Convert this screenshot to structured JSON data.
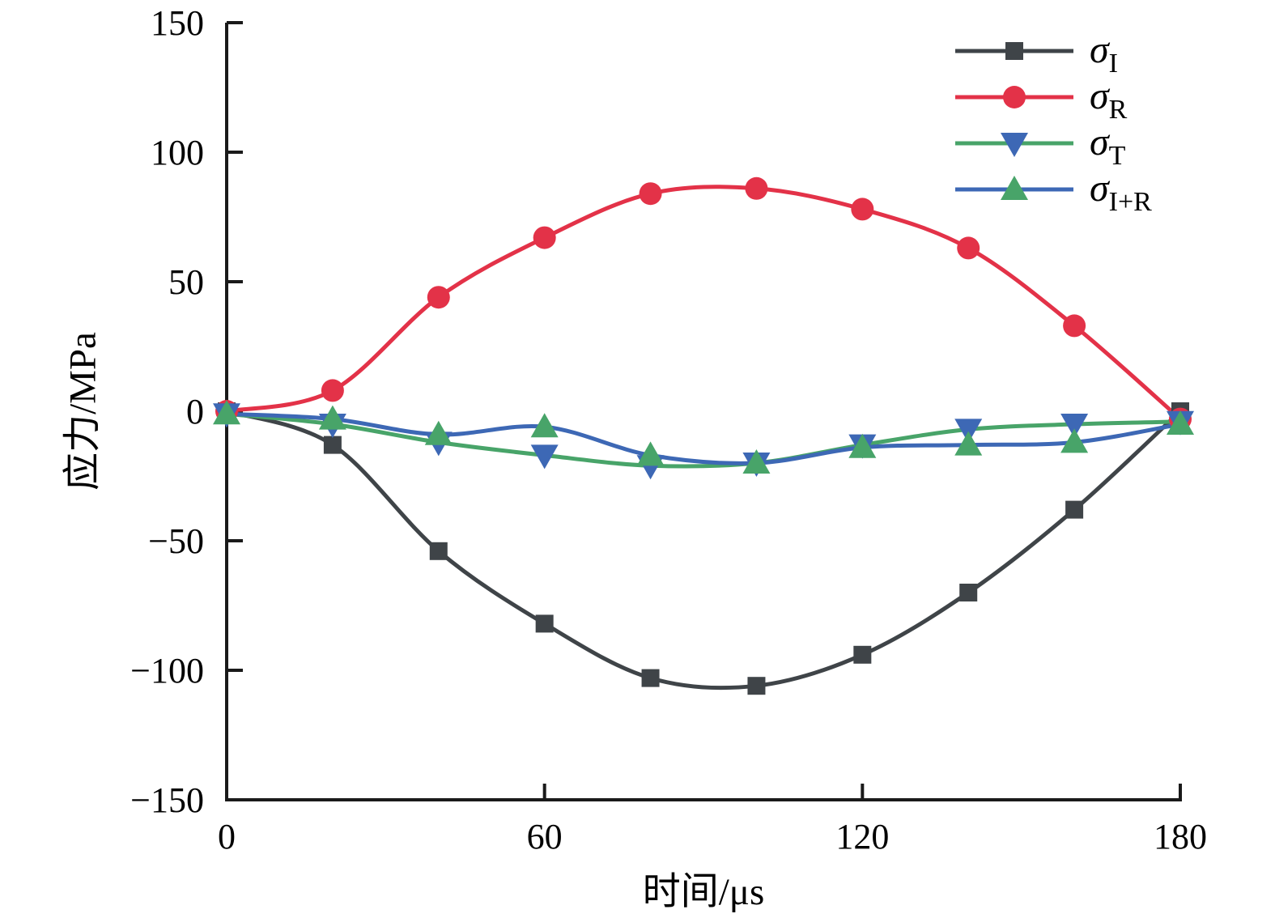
{
  "figure": {
    "background": "#ffffff",
    "axis_color": "#1a1a1a"
  },
  "chart_data": {
    "type": "line",
    "title": "",
    "xlabel": "时间/μs",
    "ylabel": "应力/MPa",
    "xlim": [
      0,
      180
    ],
    "ylim": [
      -150,
      150
    ],
    "xticks": [
      0,
      60,
      120,
      180
    ],
    "yticks": [
      -150,
      -100,
      -50,
      0,
      50,
      100,
      150
    ],
    "grid": false,
    "legend_position": "top-right",
    "x": [
      0,
      20,
      40,
      60,
      80,
      100,
      120,
      140,
      160,
      180
    ],
    "series": [
      {
        "name": "sigma_I",
        "legend_sigma": "σ",
        "legend_sub": "I",
        "line_color": "#3F4448",
        "marker": "square",
        "marker_color": "#3F4448",
        "values": [
          0,
          -13,
          -54,
          -82,
          -103,
          -106,
          -94,
          -70,
          -38,
          0
        ]
      },
      {
        "name": "sigma_R",
        "legend_sigma": "σ",
        "legend_sub": "R",
        "line_color": "#E33248",
        "marker": "circle",
        "marker_color": "#E33248",
        "values": [
          0,
          8,
          44,
          67,
          84,
          86,
          78,
          63,
          33,
          -3
        ]
      },
      {
        "name": "sigma_T",
        "legend_sigma": "σ",
        "legend_sub": "T",
        "line_color": "#48A469",
        "marker": "triangle-down",
        "marker_color": "#3D68B5",
        "values": [
          -1,
          -5,
          -12,
          -17,
          -21,
          -20,
          -13,
          -7,
          -5,
          -4
        ]
      },
      {
        "name": "sigma_I_plus_R",
        "legend_sigma": "σ",
        "legend_sub": "I+R",
        "line_color": "#3D68B5",
        "marker": "triangle-up",
        "marker_color": "#48A469",
        "values": [
          -1,
          -3,
          -9,
          -6,
          -17,
          -20,
          -14,
          -13,
          -12,
          -5
        ]
      }
    ]
  }
}
